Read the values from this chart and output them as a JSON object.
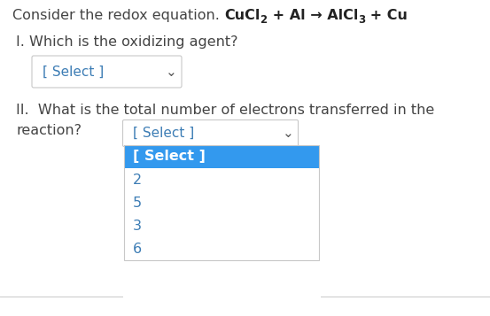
{
  "bg_color": "#ffffff",
  "text_color": "#444444",
  "bold_color": "#222222",
  "select_color": "#3d7db5",
  "highlight_color": "#3399ee",
  "highlight_text_color": "#ffffff",
  "border_color": "#c8c8c8",
  "chevron_color": "#555555",
  "title_normal": "Consider the redox equation. ",
  "cucl": "CuCl",
  "sub2": "2",
  "mid": " + Al → AlCl",
  "sub3": "3",
  "end": " + Cu",
  "q1": "I. Which is the oxidizing agent?",
  "select1": "[ Select ]",
  "q2": "II.  What is the total number of electrons transferred in the",
  "reaction_word": "reaction?",
  "select2": "[ Select ]",
  "dropdown_items": [
    "[ Select ]",
    "2",
    "5",
    "3",
    "6"
  ],
  "fig_w": 5.53,
  "fig_h": 3.57,
  "dpi": 100,
  "title_fs": 11.5,
  "body_fs": 11.5,
  "select_fs": 11.0,
  "drop_fs": 11.5,
  "sub_fs": 8.5
}
